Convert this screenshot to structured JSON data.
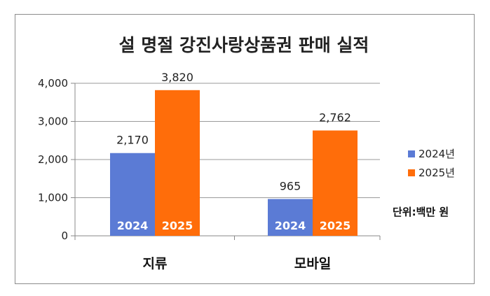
{
  "chart_data": {
    "type": "bar",
    "title": "설 명절 강진사랑상품권 판매 실적",
    "categories": [
      "지류",
      "모바일"
    ],
    "series": [
      {
        "name": "2024년",
        "inner_label": "2024",
        "color": "#5b7bd5",
        "values": [
          2170,
          965
        ],
        "value_labels": [
          "2,170",
          "965"
        ]
      },
      {
        "name": "2025년",
        "inner_label": "2025",
        "color": "#ff6d0a",
        "values": [
          3820,
          2762
        ],
        "value_labels": [
          "3,820",
          "2,762"
        ]
      }
    ],
    "ylim": [
      0,
      4000
    ],
    "yticks": [
      0,
      1000,
      2000,
      3000,
      4000
    ],
    "ytick_labels": [
      "0",
      "1,000",
      "2,000",
      "3,000",
      "4,000"
    ],
    "grid": true,
    "legend_position": "right",
    "unit_note": "단위:백만 원"
  }
}
